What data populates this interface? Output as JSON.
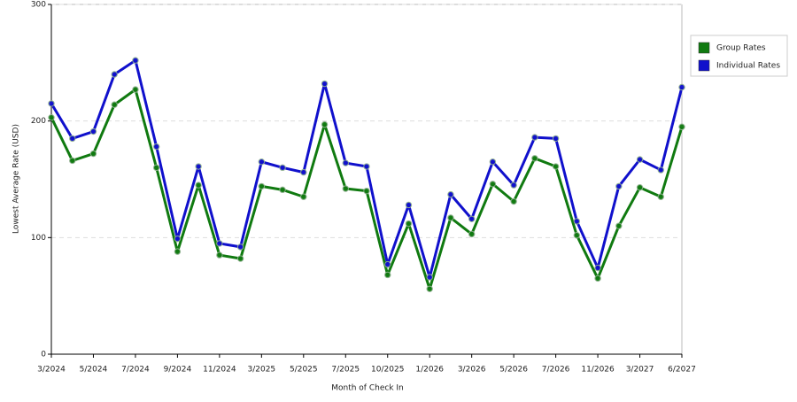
{
  "chart_data": {
    "type": "line",
    "x_label": "Month of Check In",
    "y_label": "Lowest Average Rate (USD)",
    "categories": [
      "3/2024",
      null,
      "5/2024",
      null,
      "7/2024",
      null,
      "9/2024",
      null,
      "11/2024",
      null,
      "3/2025",
      null,
      "5/2025",
      null,
      "7/2025",
      null,
      "10/2025",
      null,
      "1/2026",
      null,
      "3/2026",
      null,
      "5/2026",
      null,
      "7/2026",
      null,
      "11/2026",
      null,
      "3/2027",
      null,
      "6/2027"
    ],
    "series": [
      {
        "name": "Group Rates",
        "color": "#107a10",
        "values": [
          203,
          166,
          172,
          214,
          227,
          160,
          88,
          145,
          85,
          82,
          144,
          141,
          135,
          197,
          142,
          140,
          68,
          112,
          56,
          117,
          103,
          146,
          131,
          168,
          161,
          102,
          65,
          110,
          143,
          135,
          195
        ]
      },
      {
        "name": "Individual Rates",
        "color": "#1010cc",
        "values": [
          215,
          185,
          191,
          240,
          252,
          178,
          99,
          161,
          95,
          92,
          165,
          160,
          156,
          232,
          164,
          161,
          77,
          128,
          66,
          137,
          116,
          165,
          145,
          186,
          185,
          114,
          74,
          144,
          167,
          158,
          229
        ]
      }
    ],
    "ylim": [
      0,
      300
    ],
    "yticks": [
      0,
      100,
      200,
      300
    ],
    "grid": true,
    "legend": "right"
  }
}
